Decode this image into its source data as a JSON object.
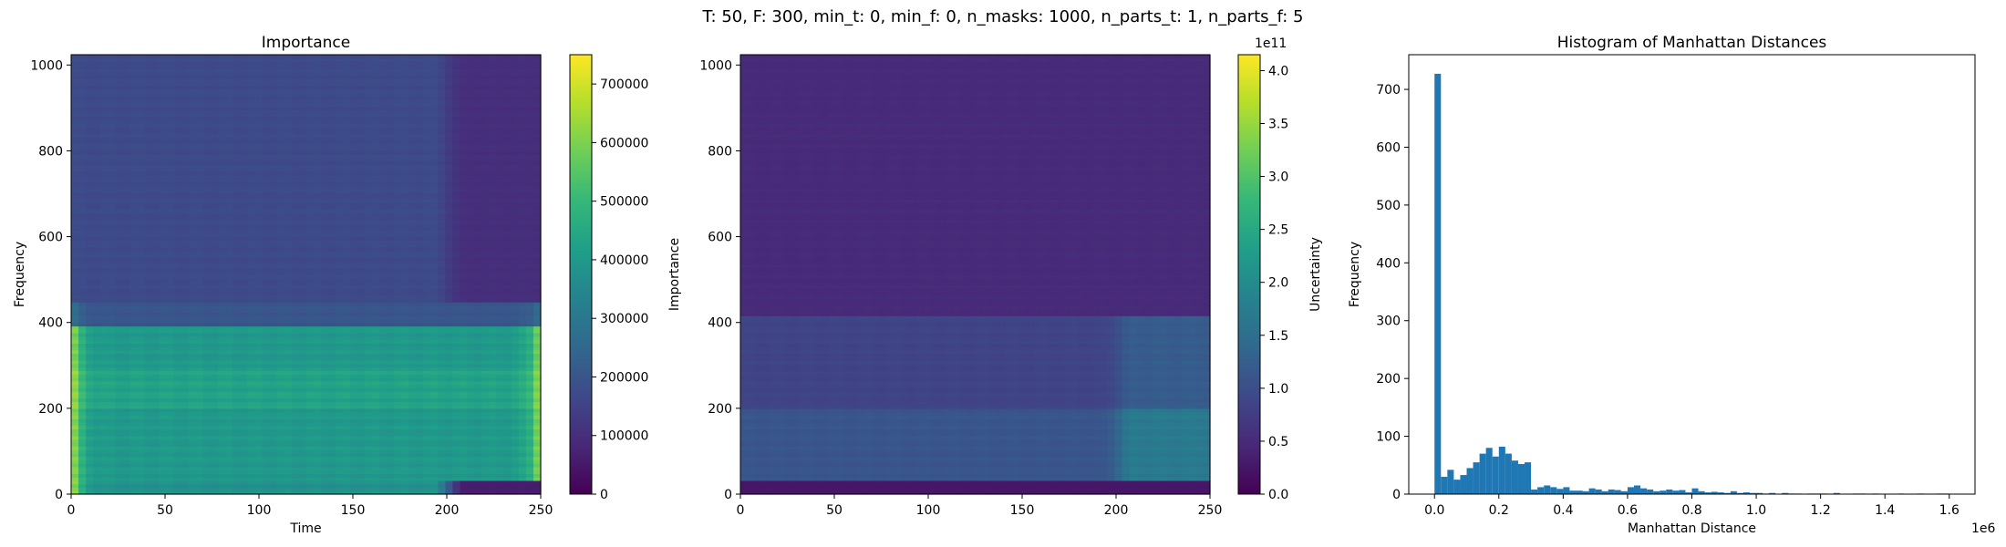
{
  "figure": {
    "suptitle": "T: 50, F: 300, min_t: 0, min_f: 0, n_masks: 1000, n_parts_t: 1, n_parts_f: 5"
  },
  "colormap": {
    "name": "viridis",
    "stops": [
      "#440154",
      "#482878",
      "#3e4989",
      "#31688e",
      "#26828e",
      "#1f9e89",
      "#35b779",
      "#6ece58",
      "#b5de2b",
      "#fde725"
    ]
  },
  "chart_data": [
    {
      "type": "heatmap",
      "title": "Importance",
      "xlabel": "Time",
      "ylabel": "Frequency",
      "xlim": [
        0,
        250
      ],
      "ylim": [
        0,
        1024
      ],
      "xticks": [
        0,
        50,
        100,
        150,
        200,
        250
      ],
      "yticks": [
        0,
        200,
        400,
        600,
        800,
        1000
      ],
      "colorbar": {
        "label": "Importance",
        "range": [
          0,
          750000
        ],
        "ticks": [
          0,
          100000,
          200000,
          300000,
          400000,
          500000,
          600000,
          700000
        ],
        "tick_labels": [
          "0",
          "100000",
          "200000",
          "300000",
          "400000",
          "500000",
          "600000",
          "700000"
        ],
        "offset_text": ""
      },
      "bands": [
        {
          "f_range": [
            0,
            30
          ],
          "value": 380000,
          "edge_value": 740000,
          "late_time_value": 60000
        },
        {
          "f_range": [
            30,
            200
          ],
          "value": 400000,
          "edge_value": 720000
        },
        {
          "f_range": [
            200,
            300
          ],
          "value": 430000,
          "edge_value": 730000
        },
        {
          "f_range": [
            300,
            390
          ],
          "value": 400000,
          "edge_value": 700000
        },
        {
          "f_range": [
            390,
            450
          ],
          "value": 200000,
          "edge_value": 300000
        },
        {
          "f_range": [
            450,
            1024
          ],
          "value": 170000,
          "edge_value": 170000,
          "late_time_value": 100000
        }
      ]
    },
    {
      "type": "heatmap",
      "title": "",
      "xlabel": "",
      "ylabel": "",
      "xlim": [
        0,
        250
      ],
      "ylim": [
        0,
        1024
      ],
      "xticks": [
        0,
        50,
        100,
        150,
        200,
        250
      ],
      "yticks": [
        0,
        200,
        400,
        600,
        800,
        1000
      ],
      "colorbar": {
        "label": "Uncertainty",
        "range": [
          0,
          4.15
        ],
        "ticks": [
          0.0,
          0.5,
          1.0,
          1.5,
          2.0,
          2.5,
          3.0,
          3.5,
          4.0
        ],
        "tick_labels": [
          "0.0",
          "0.5",
          "1.0",
          "1.5",
          "2.0",
          "2.5",
          "3.0",
          "3.5",
          "4.0"
        ],
        "offset_text": "1e11"
      },
      "bands": [
        {
          "f_range": [
            0,
            30
          ],
          "value": 0.25
        },
        {
          "f_range": [
            30,
            200
          ],
          "value": 1.1,
          "late_time_value": 1.7
        },
        {
          "f_range": [
            200,
            420
          ],
          "value": 0.85,
          "late_time_value": 1.2
        },
        {
          "f_range": [
            420,
            1024
          ],
          "value": 0.5
        }
      ]
    },
    {
      "type": "bar",
      "title": "Histogram of Manhattan Distances",
      "xlabel": "Manhattan Distance",
      "ylabel": "Frequency",
      "xlim": [
        -0.08,
        1.68
      ],
      "ylim": [
        0,
        760
      ],
      "xticks": [
        0.0,
        0.2,
        0.4,
        0.6,
        0.8,
        1.0,
        1.2,
        1.4,
        1.6
      ],
      "xtick_labels": [
        "0.0",
        "0.2",
        "0.4",
        "0.6",
        "0.8",
        "1.0",
        "1.2",
        "1.4",
        "1.6"
      ],
      "x_offset_text": "1e6",
      "yticks": [
        0,
        100,
        200,
        300,
        400,
        500,
        600,
        700
      ],
      "bar_color": "#1f77b4",
      "bin_width": 0.02,
      "bin_start": 0.0,
      "values": [
        727,
        30,
        42,
        25,
        33,
        45,
        55,
        70,
        80,
        65,
        82,
        70,
        58,
        52,
        55,
        8,
        12,
        15,
        12,
        9,
        12,
        6,
        6,
        5,
        10,
        8,
        5,
        8,
        7,
        5,
        12,
        15,
        10,
        8,
        5,
        6,
        8,
        6,
        7,
        3,
        10,
        5,
        3,
        4,
        3,
        2,
        5,
        2,
        3,
        2,
        2,
        1,
        2,
        0,
        2,
        1,
        1,
        0,
        1,
        1,
        1,
        0,
        2,
        0,
        0,
        1,
        1,
        0,
        1,
        0,
        0,
        0,
        1,
        0,
        0,
        1,
        0,
        0,
        1,
        1
      ]
    }
  ]
}
